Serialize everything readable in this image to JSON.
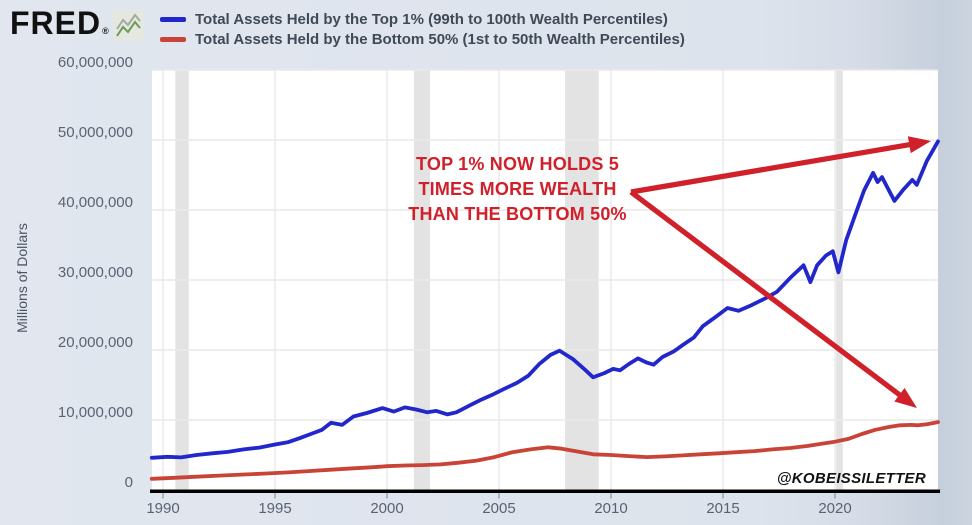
{
  "page": {
    "background": "#dde3ec",
    "plot_background": "#ffffff"
  },
  "header": {
    "logo_text": "FRED",
    "registered_mark": "®",
    "legend": [
      {
        "label": "Total Assets Held by the Top 1% (99th to 100th Wealth Percentiles)",
        "color": "#2127cb"
      },
      {
        "label": "Total Assets Held by the Bottom 50% (1st to 50th Wealth Percentiles)",
        "color": "#c94337"
      }
    ]
  },
  "watermark": "@KOBEISSILETTER",
  "annotation": {
    "lines": [
      "TOP 1% NOW HOLDS 5",
      "TIMES MORE WEALTH",
      "THAN THE BOTTOM 50%"
    ],
    "color": "#d0202a",
    "arrow_color": "#d0202a",
    "arrows": [
      {
        "from": [
          631,
          192
        ],
        "to": [
          931,
          141
        ]
      },
      {
        "from": [
          631,
          192
        ],
        "to": [
          917,
          408
        ]
      }
    ]
  },
  "chart_data": {
    "type": "line",
    "title": "",
    "xlabel": "",
    "ylabel": "Millions of Dollars",
    "units": "millions of dollars",
    "xlim": [
      1989.5,
      2024.7
    ],
    "ylim": [
      0,
      60000000
    ],
    "grid": true,
    "legend_position": "top",
    "y_ticks": [
      {
        "value": 0,
        "label": "0"
      },
      {
        "value": 10000000,
        "label": "10,000,000"
      },
      {
        "value": 20000000,
        "label": "20,000,000"
      },
      {
        "value": 30000000,
        "label": "30,000,000"
      },
      {
        "value": 40000000,
        "label": "40,000,000"
      },
      {
        "value": 50000000,
        "label": "50,000,000"
      },
      {
        "value": 60000000,
        "label": "60,000,000"
      }
    ],
    "x_ticks": [
      {
        "year": 1990,
        "label": "1990"
      },
      {
        "year": 1995,
        "label": "1995"
      },
      {
        "year": 2000,
        "label": "2000"
      },
      {
        "year": 2005,
        "label": "2005"
      },
      {
        "year": 2010,
        "label": "2010"
      },
      {
        "year": 2015,
        "label": "2015"
      },
      {
        "year": 2020,
        "label": "2020"
      }
    ],
    "recession_bands": [
      [
        1990.55,
        1991.15
      ],
      [
        2001.2,
        2001.92
      ],
      [
        2007.95,
        2009.45
      ],
      [
        2020.05,
        2020.35
      ]
    ],
    "series": [
      {
        "name": "Total Assets Held by the Top 1% (99th to 100th Wealth Percentiles)",
        "color": "#2127cb",
        "points": [
          [
            1989.5,
            4600000
          ],
          [
            1990.2,
            4750000
          ],
          [
            1990.8,
            4650000
          ],
          [
            1991.5,
            5000000
          ],
          [
            1992.2,
            5250000
          ],
          [
            1992.9,
            5450000
          ],
          [
            1993.6,
            5800000
          ],
          [
            1994.3,
            6050000
          ],
          [
            1995.0,
            6500000
          ],
          [
            1995.6,
            6850000
          ],
          [
            1996.1,
            7400000
          ],
          [
            1996.6,
            8000000
          ],
          [
            1997.1,
            8600000
          ],
          [
            1997.5,
            9600000
          ],
          [
            1998.0,
            9300000
          ],
          [
            1998.5,
            10500000
          ],
          [
            1999.1,
            11000000
          ],
          [
            1999.8,
            11700000
          ],
          [
            2000.3,
            11200000
          ],
          [
            2000.8,
            11800000
          ],
          [
            2001.3,
            11500000
          ],
          [
            2001.8,
            11100000
          ],
          [
            2002.2,
            11300000
          ],
          [
            2002.7,
            10800000
          ],
          [
            2003.1,
            11100000
          ],
          [
            2003.7,
            12100000
          ],
          [
            2004.2,
            12900000
          ],
          [
            2004.7,
            13600000
          ],
          [
            2005.2,
            14400000
          ],
          [
            2005.8,
            15300000
          ],
          [
            2006.3,
            16300000
          ],
          [
            2006.8,
            18000000
          ],
          [
            2007.3,
            19300000
          ],
          [
            2007.7,
            19900000
          ],
          [
            2008.3,
            18700000
          ],
          [
            2008.8,
            17300000
          ],
          [
            2009.2,
            16100000
          ],
          [
            2009.7,
            16700000
          ],
          [
            2010.1,
            17300000
          ],
          [
            2010.4,
            17100000
          ],
          [
            2010.8,
            18000000
          ],
          [
            2011.2,
            18800000
          ],
          [
            2011.6,
            18200000
          ],
          [
            2011.9,
            17900000
          ],
          [
            2012.3,
            19000000
          ],
          [
            2012.8,
            19800000
          ],
          [
            2013.2,
            20700000
          ],
          [
            2013.7,
            21800000
          ],
          [
            2014.1,
            23400000
          ],
          [
            2014.7,
            24800000
          ],
          [
            2015.2,
            26000000
          ],
          [
            2015.7,
            25600000
          ],
          [
            2016.2,
            26300000
          ],
          [
            2016.9,
            27400000
          ],
          [
            2017.4,
            28300000
          ],
          [
            2018.0,
            30300000
          ],
          [
            2018.6,
            32100000
          ],
          [
            2018.9,
            29700000
          ],
          [
            2019.2,
            32100000
          ],
          [
            2019.6,
            33500000
          ],
          [
            2019.9,
            34100000
          ],
          [
            2020.15,
            31100000
          ],
          [
            2020.5,
            35700000
          ],
          [
            2020.9,
            39300000
          ],
          [
            2021.3,
            42800000
          ],
          [
            2021.7,
            45300000
          ],
          [
            2021.9,
            44000000
          ],
          [
            2022.1,
            44700000
          ],
          [
            2022.65,
            41300000
          ],
          [
            2023.05,
            42900000
          ],
          [
            2023.45,
            44300000
          ],
          [
            2023.65,
            43600000
          ],
          [
            2024.1,
            47000000
          ],
          [
            2024.6,
            49800000
          ]
        ]
      },
      {
        "name": "Total Assets Held by the Bottom 50% (1st to 50th Wealth Percentiles)",
        "color": "#c94337",
        "points": [
          [
            1989.5,
            1600000
          ],
          [
            1990.5,
            1750000
          ],
          [
            1991.5,
            1900000
          ],
          [
            1992.5,
            2050000
          ],
          [
            1993.5,
            2200000
          ],
          [
            1994.5,
            2350000
          ],
          [
            1995.5,
            2500000
          ],
          [
            1996.5,
            2700000
          ],
          [
            1997.5,
            2900000
          ],
          [
            1998.5,
            3100000
          ],
          [
            1999.3,
            3250000
          ],
          [
            2000.0,
            3400000
          ],
          [
            2000.8,
            3500000
          ],
          [
            2001.6,
            3550000
          ],
          [
            2002.4,
            3650000
          ],
          [
            2003.2,
            3900000
          ],
          [
            2004.0,
            4200000
          ],
          [
            2004.8,
            4700000
          ],
          [
            2005.6,
            5400000
          ],
          [
            2006.4,
            5800000
          ],
          [
            2007.2,
            6100000
          ],
          [
            2007.8,
            5900000
          ],
          [
            2008.5,
            5500000
          ],
          [
            2009.2,
            5100000
          ],
          [
            2010.0,
            5000000
          ],
          [
            2010.8,
            4850000
          ],
          [
            2011.6,
            4700000
          ],
          [
            2012.4,
            4800000
          ],
          [
            2013.2,
            4950000
          ],
          [
            2014.0,
            5100000
          ],
          [
            2014.8,
            5250000
          ],
          [
            2015.6,
            5400000
          ],
          [
            2016.4,
            5550000
          ],
          [
            2017.2,
            5800000
          ],
          [
            2018.0,
            6000000
          ],
          [
            2018.8,
            6300000
          ],
          [
            2019.4,
            6600000
          ],
          [
            2020.0,
            6900000
          ],
          [
            2020.6,
            7300000
          ],
          [
            2021.2,
            8000000
          ],
          [
            2021.8,
            8600000
          ],
          [
            2022.4,
            9000000
          ],
          [
            2022.9,
            9250000
          ],
          [
            2023.4,
            9300000
          ],
          [
            2023.7,
            9250000
          ],
          [
            2024.1,
            9400000
          ],
          [
            2024.6,
            9700000
          ]
        ]
      }
    ]
  }
}
